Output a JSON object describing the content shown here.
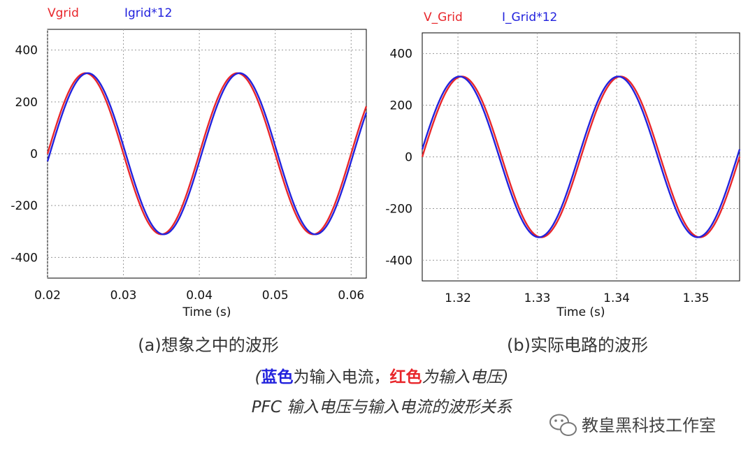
{
  "colors": {
    "voltage": "#e8262b",
    "current": "#2222dd",
    "grid": "#999999",
    "caption": "#333333"
  },
  "chart_data": [
    {
      "type": "line",
      "xlabel": "Time (s)",
      "xlim": [
        0.02,
        0.062
      ],
      "ylim": [
        -480,
        480
      ],
      "xticks": [
        "0.02",
        "0.03",
        "0.04",
        "0.05",
        "0.06"
      ],
      "xtick_values": [
        0.02,
        0.03,
        0.04,
        0.05,
        0.06
      ],
      "yticks": [
        "400",
        "200",
        "0",
        "-200",
        "-400"
      ],
      "ytick_values": [
        400,
        200,
        0,
        -200,
        -400
      ],
      "grid": true,
      "series": [
        {
          "name": "Vgrid",
          "color": "red",
          "amplitude": 311,
          "frequency_hz": 50,
          "phase_zero_s": 0.02,
          "x_range": [
            0.02,
            0.062
          ]
        },
        {
          "name": "Igrid*12",
          "color": "blue",
          "amplitude": 311,
          "frequency_hz": 50,
          "phase_zero_s": 0.0203,
          "x_range": [
            0.02,
            0.062
          ]
        }
      ]
    },
    {
      "type": "line",
      "xlabel": "Time (s)",
      "xlim": [
        1.3155,
        1.3555
      ],
      "ylim": [
        -480,
        480
      ],
      "xticks": [
        "1.32",
        "1.33",
        "1.34",
        "1.35"
      ],
      "xtick_values": [
        1.32,
        1.33,
        1.34,
        1.35
      ],
      "yticks": [
        "400",
        "200",
        "0",
        "-200",
        "-400"
      ],
      "ytick_values": [
        400,
        200,
        0,
        -200,
        -400
      ],
      "grid": true,
      "series": [
        {
          "name": "V_Grid",
          "color": "red",
          "amplitude": 311,
          "frequency_hz": 50,
          "phase_zero_s": 1.3155,
          "x_range": [
            1.3155,
            1.3555
          ]
        },
        {
          "name": "I_Grid*12",
          "color": "blue",
          "amplitude": 311,
          "frequency_hz": 50,
          "phase_zero_s": 1.3152,
          "x_range": [
            1.3155,
            1.3555
          ]
        }
      ]
    }
  ],
  "captions": {
    "left": "(a)想象之中的波形",
    "right": "(b)实际电路的波形",
    "legend_open": "(",
    "legend_blue": "蓝色",
    "legend_mid": "为输入电流，",
    "legend_red": "红色",
    "legend_end": "为输入电压)",
    "title": "PFC 输入电压与输入电流的波形关系"
  },
  "watermark": {
    "text": "教皇黑科技工作室",
    "icon": "wechat-icon"
  }
}
